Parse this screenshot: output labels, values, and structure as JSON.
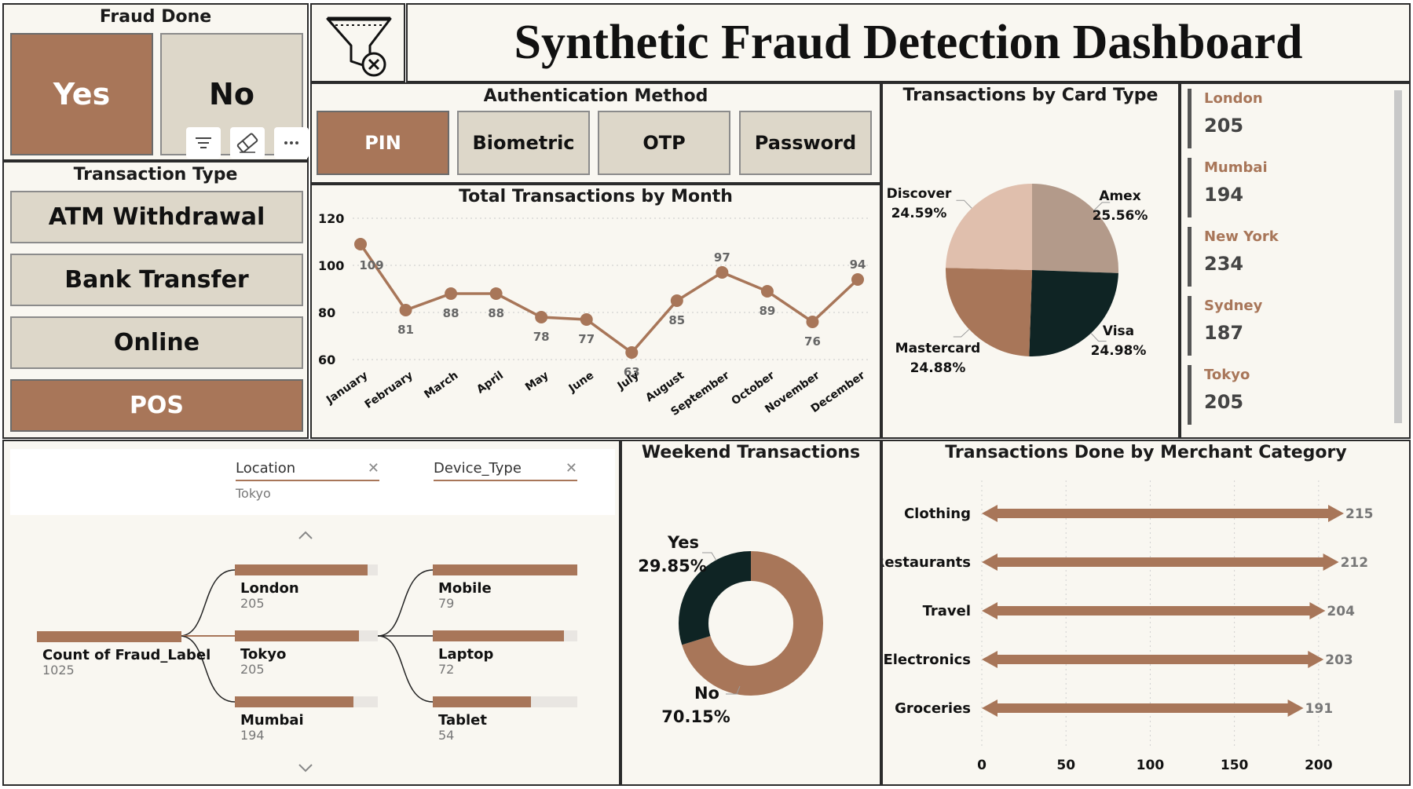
{
  "dashboard_title": "Synthetic Fraud Detection Dashboard",
  "fraud_done": {
    "title": "Fraud Done",
    "options": [
      "Yes",
      "No"
    ],
    "selected": "Yes"
  },
  "transaction_type": {
    "title": "Transaction Type",
    "options": [
      "ATM Withdrawal",
      "Bank Transfer",
      "Online",
      "POS"
    ],
    "selected": "POS"
  },
  "auth_method": {
    "title": "Authentication Method",
    "options": [
      "PIN",
      "Biometric",
      "OTP",
      "Password"
    ],
    "selected": "PIN"
  },
  "icons": {
    "logo": "funnel-with-x-icon",
    "filter": "filter-lines-icon",
    "eraser": "eraser-icon",
    "more": "more-dots-icon"
  },
  "city_cards": [
    {
      "city": "London",
      "value": "205"
    },
    {
      "city": "Mumbai",
      "value": "194"
    },
    {
      "city": "New York",
      "value": "234"
    },
    {
      "city": "Sydney",
      "value": "187"
    },
    {
      "city": "Tokyo",
      "value": "205"
    }
  ],
  "decomp_tree": {
    "filters": [
      {
        "label": "Location",
        "value": "Tokyo"
      },
      {
        "label": "Device_Type",
        "value": ""
      }
    ],
    "root": {
      "label": "Count of Fraud_Label",
      "value": "1025"
    },
    "level1": [
      {
        "label": "London",
        "value": "205",
        "fraction": 0.93
      },
      {
        "label": "Tokyo",
        "value": "205",
        "fraction": 0.87
      },
      {
        "label": "Mumbai",
        "value": "194",
        "fraction": 0.83
      }
    ],
    "level2": [
      {
        "label": "Mobile",
        "value": "79",
        "fraction": 1.0
      },
      {
        "label": "Laptop",
        "value": "72",
        "fraction": 0.91
      },
      {
        "label": "Tablet",
        "value": "54",
        "fraction": 0.68
      }
    ]
  },
  "colors": {
    "accent": "#a87659",
    "dark": "#0f2424",
    "light": "#ddd7c9",
    "mid": "#b39a8a",
    "pale": "#e0bfad",
    "bg": "#f9f7f1"
  },
  "chart_data": [
    {
      "type": "line",
      "title": "Total Transactions by Month",
      "categories": [
        "January",
        "February",
        "March",
        "April",
        "May",
        "June",
        "July",
        "August",
        "September",
        "October",
        "November",
        "December"
      ],
      "values": [
        109,
        81,
        88,
        88,
        78,
        77,
        63,
        85,
        97,
        89,
        76,
        94
      ],
      "ylim": [
        60,
        120
      ],
      "yticks": [
        60,
        80,
        100,
        120
      ],
      "grid": true
    },
    {
      "type": "pie",
      "title": "Transactions by Card Type",
      "labels": [
        "Amex",
        "Visa",
        "Mastercard",
        "Discover"
      ],
      "values": [
        25.56,
        24.98,
        24.88,
        24.59
      ],
      "display": [
        "25.56%",
        "24.98%",
        "24.88%",
        "24.59%"
      ],
      "colors": [
        "#b39a8a",
        "#0f2424",
        "#a87659",
        "#e0bfad"
      ]
    },
    {
      "type": "pie",
      "title": "Weekend Transactions",
      "labels": [
        "No",
        "Yes"
      ],
      "values": [
        70.15,
        29.85
      ],
      "display": [
        "70.15%",
        "29.85%"
      ],
      "colors": [
        "#a87659",
        "#0f2424"
      ]
    },
    {
      "type": "bar",
      "title": "Transactions Done by Merchant Category",
      "categories": [
        "Clothing",
        "Restaurants",
        "Travel",
        "Electronics",
        "Groceries"
      ],
      "values": [
        215,
        212,
        204,
        203,
        191
      ],
      "xlim": [
        0,
        215
      ],
      "xticks": [
        0,
        50,
        100,
        150,
        200
      ],
      "orientation": "horizontal"
    }
  ]
}
